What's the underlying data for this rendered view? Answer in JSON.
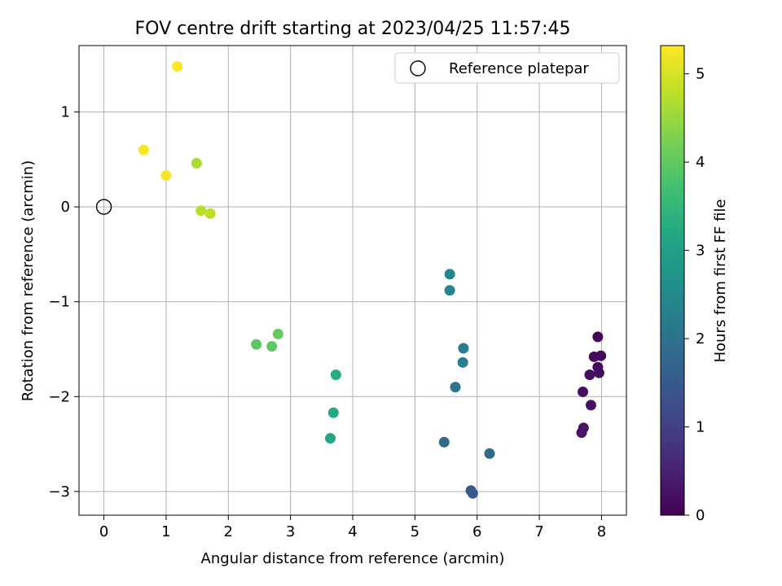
{
  "chart_data": {
    "type": "scatter",
    "title": "FOV centre drift starting at 2023/04/25 11:57:45",
    "xlabel": "Angular distance from reference (arcmin)",
    "ylabel": "Rotation from reference (arcmin)",
    "xlim": [
      -0.4,
      8.4
    ],
    "ylim": [
      -3.25,
      1.7
    ],
    "x_ticks": [
      0,
      1,
      2,
      3,
      4,
      5,
      6,
      7,
      8
    ],
    "x_tick_labels": [
      "0",
      "1",
      "2",
      "3",
      "4",
      "5",
      "6",
      "7",
      "8"
    ],
    "y_ticks": [
      1,
      0,
      -1,
      -2,
      -3
    ],
    "y_tick_labels": [
      "1",
      "0",
      "−1",
      "−2",
      "−3"
    ],
    "grid": true,
    "legend_position": "upper-right",
    "reference": {
      "label": "Reference platepar",
      "x": 0,
      "y": 0
    },
    "colorbar": {
      "label": "Hours from first FF file",
      "min": 0,
      "max": 5.32,
      "ticks": [
        0,
        1,
        2,
        3,
        4,
        5
      ],
      "tick_labels": [
        "0",
        "1",
        "2",
        "3",
        "4",
        "5"
      ],
      "colormap": "viridis"
    },
    "points": [
      {
        "x": 7.94,
        "y": -1.37,
        "hours": 0.05
      },
      {
        "x": 7.99,
        "y": -1.57,
        "hours": 0.1
      },
      {
        "x": 7.88,
        "y": -1.58,
        "hours": 0.12
      },
      {
        "x": 7.94,
        "y": -1.69,
        "hours": 0.15
      },
      {
        "x": 7.96,
        "y": -1.75,
        "hours": 0.18
      },
      {
        "x": 7.81,
        "y": -1.77,
        "hours": 0.2
      },
      {
        "x": 7.7,
        "y": -1.95,
        "hours": 0.22
      },
      {
        "x": 7.83,
        "y": -2.09,
        "hours": 0.25
      },
      {
        "x": 7.71,
        "y": -2.33,
        "hours": 0.28
      },
      {
        "x": 7.68,
        "y": -2.38,
        "hours": 0.3
      },
      {
        "x": 5.9,
        "y": -2.99,
        "hours": 1.45
      },
      {
        "x": 5.93,
        "y": -3.02,
        "hours": 1.5
      },
      {
        "x": 5.47,
        "y": -2.48,
        "hours": 1.8
      },
      {
        "x": 6.2,
        "y": -2.6,
        "hours": 1.85
      },
      {
        "x": 5.65,
        "y": -1.9,
        "hours": 2.0
      },
      {
        "x": 5.78,
        "y": -1.49,
        "hours": 2.2
      },
      {
        "x": 5.77,
        "y": -1.64,
        "hours": 2.25
      },
      {
        "x": 5.56,
        "y": -0.88,
        "hours": 2.4
      },
      {
        "x": 5.56,
        "y": -0.71,
        "hours": 2.45
      },
      {
        "x": 3.64,
        "y": -2.44,
        "hours": 3.1
      },
      {
        "x": 3.69,
        "y": -2.17,
        "hours": 3.2
      },
      {
        "x": 3.73,
        "y": -1.77,
        "hours": 3.3
      },
      {
        "x": 2.45,
        "y": -1.45,
        "hours": 3.95
      },
      {
        "x": 2.7,
        "y": -1.47,
        "hours": 4.0
      },
      {
        "x": 2.8,
        "y": -1.34,
        "hours": 4.05
      },
      {
        "x": 1.49,
        "y": 0.46,
        "hours": 4.65
      },
      {
        "x": 1.56,
        "y": -0.04,
        "hours": 4.75
      },
      {
        "x": 1.71,
        "y": -0.07,
        "hours": 4.8
      },
      {
        "x": 1.0,
        "y": 0.33,
        "hours": 5.25
      },
      {
        "x": 0.64,
        "y": 0.6,
        "hours": 5.28
      },
      {
        "x": 1.18,
        "y": 1.48,
        "hours": 5.32
      }
    ]
  }
}
